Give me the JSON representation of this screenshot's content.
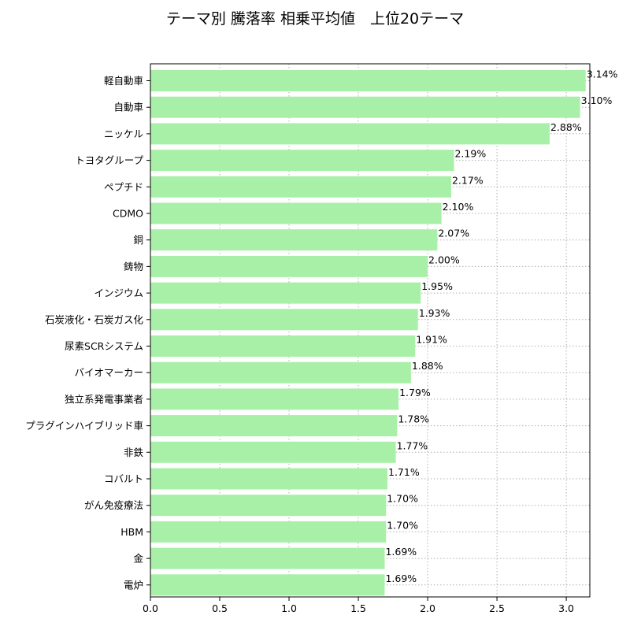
{
  "chart_data": {
    "type": "bar",
    "orientation": "horizontal",
    "title": "テーマ別 騰落率 相乗平均値　上位20テーマ",
    "xlabel": "",
    "ylabel": "",
    "categories": [
      "軽自動車",
      "自動車",
      "ニッケル",
      "トヨタグループ",
      "ペプチド",
      "CDMO",
      "銅",
      "鋳物",
      "インジウム",
      "石炭液化・石炭ガス化",
      "尿素SCRシステム",
      "バイオマーカー",
      "独立系発電事業者",
      "プラグインハイブリッド車",
      "非鉄",
      "コバルト",
      "がん免疫療法",
      "HBM",
      "金",
      "電炉"
    ],
    "values": [
      3.14,
      3.1,
      2.88,
      2.19,
      2.17,
      2.1,
      2.07,
      2.0,
      1.95,
      1.93,
      1.91,
      1.88,
      1.79,
      1.78,
      1.77,
      1.71,
      1.7,
      1.7,
      1.69,
      1.69
    ],
    "data_labels": [
      "3.14%",
      "3.10%",
      "2.88%",
      "2.19%",
      "2.17%",
      "2.10%",
      "2.07%",
      "2.00%",
      "1.95%",
      "1.93%",
      "1.91%",
      "1.88%",
      "1.79%",
      "1.78%",
      "1.77%",
      "1.71%",
      "1.70%",
      "1.70%",
      "1.69%",
      "1.69%"
    ],
    "xlim": [
      0,
      3.17
    ],
    "xticks": [
      "0.0",
      "0.5",
      "1.0",
      "1.5",
      "2.0",
      "2.5",
      "3.0"
    ],
    "grid": true,
    "grid_style": "dotted",
    "bar_color": "#a8f0a8",
    "grid_color": "#b0b0b0"
  }
}
